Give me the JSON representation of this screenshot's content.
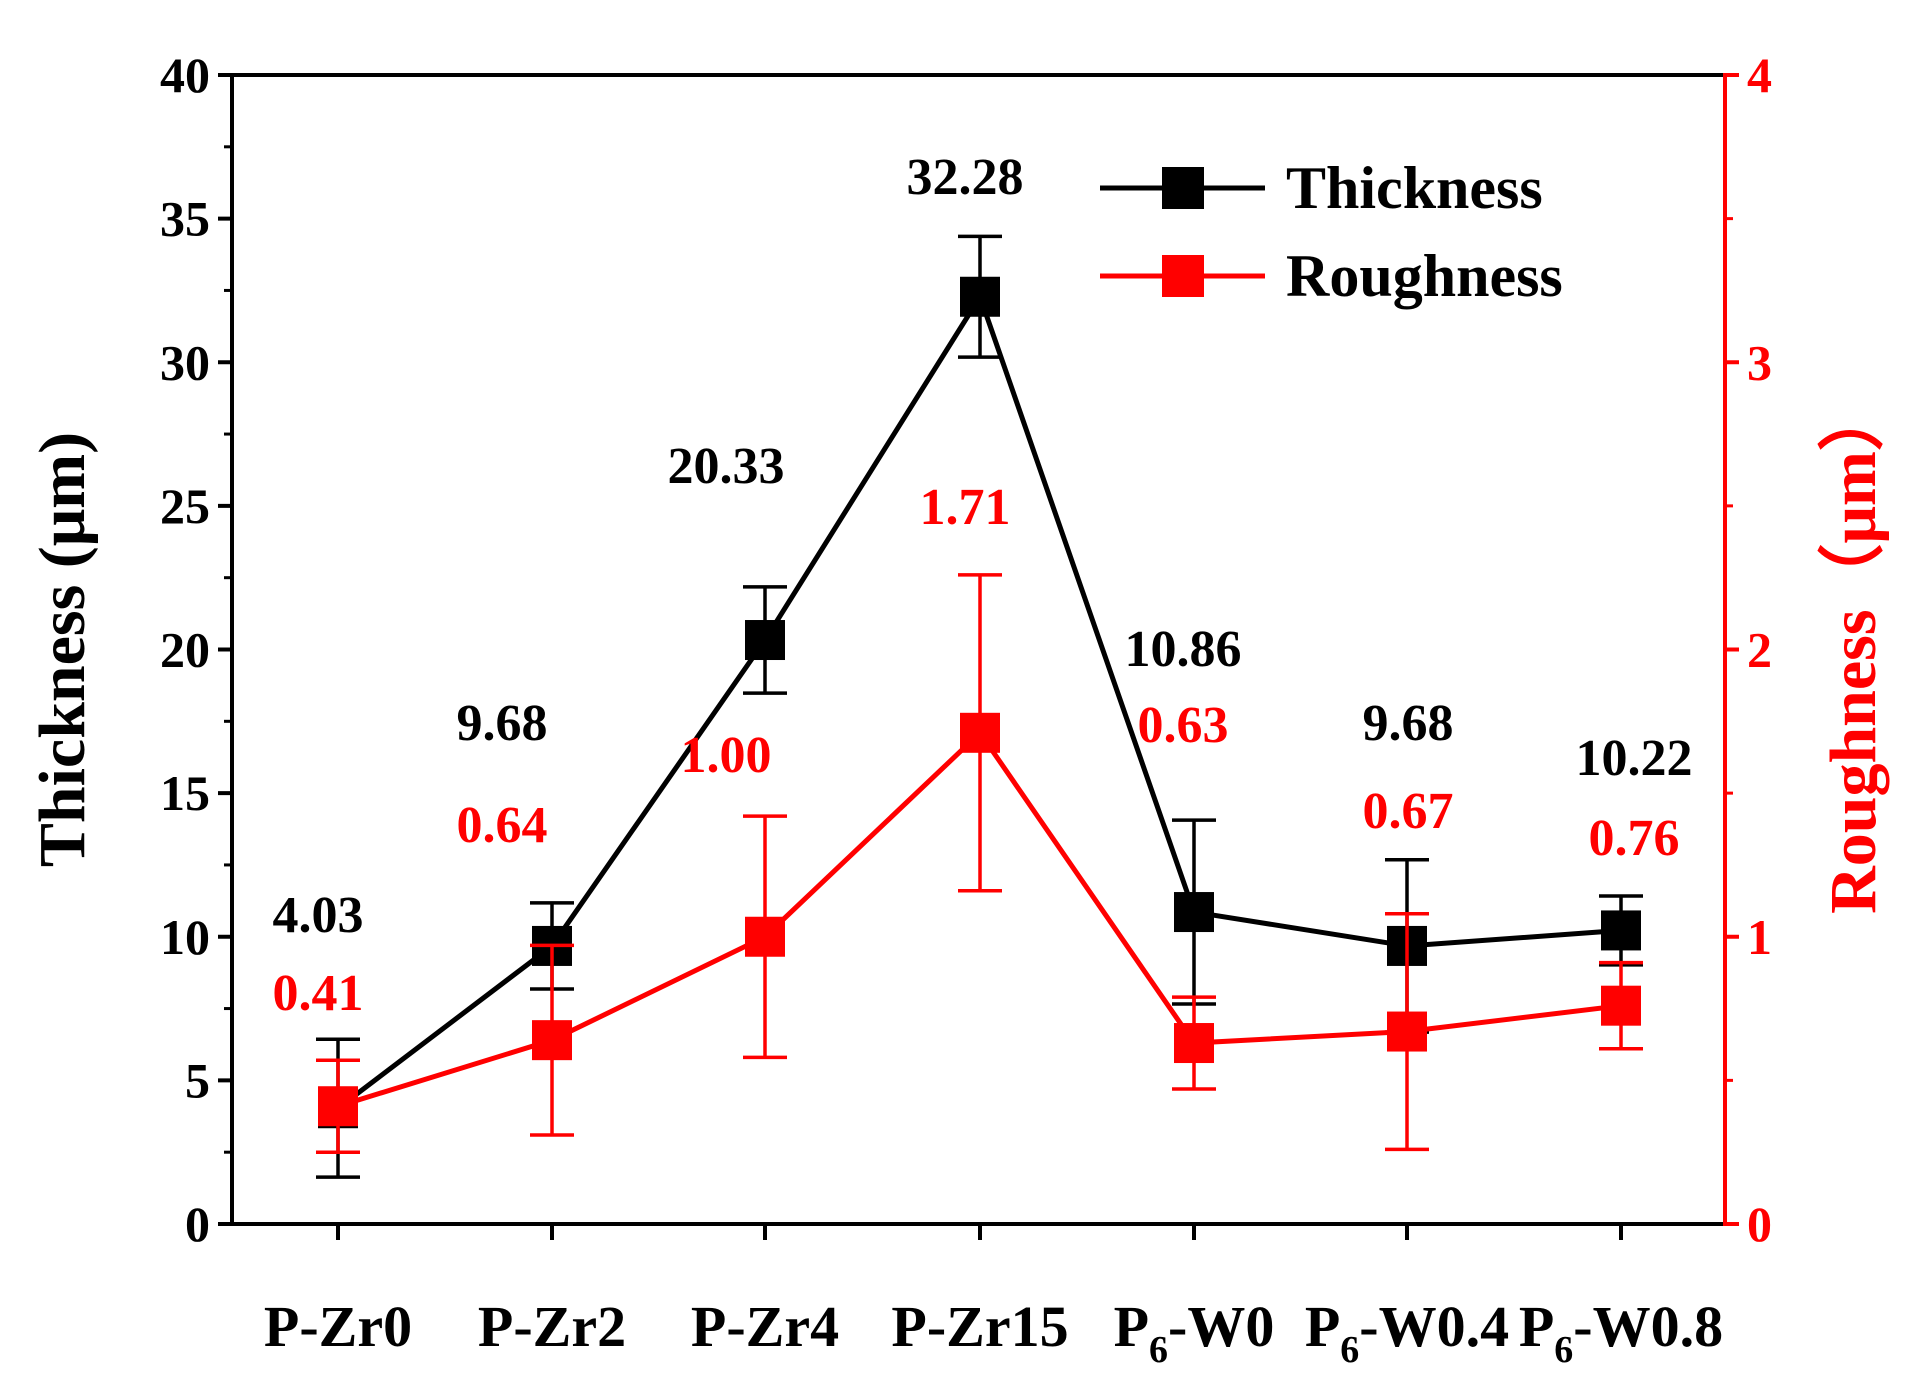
{
  "chart_data": {
    "type": "line",
    "categories": [
      {
        "main": "P-Zr0",
        "sub": "",
        "suffix": ""
      },
      {
        "main": "P-Zr2",
        "sub": "",
        "suffix": ""
      },
      {
        "main": "P-Zr4",
        "sub": "",
        "suffix": ""
      },
      {
        "main": "P-Zr15",
        "sub": "",
        "suffix": ""
      },
      {
        "main": "P",
        "sub": "6",
        "suffix": "-W0"
      },
      {
        "main": "P",
        "sub": "6",
        "suffix": "-W0.4"
      },
      {
        "main": "P",
        "sub": "6",
        "suffix": "-W0.8"
      }
    ],
    "series": [
      {
        "name": "Thickness",
        "axis": "left",
        "color": "#000000",
        "values": [
          4.03,
          9.68,
          20.33,
          32.28,
          10.86,
          9.68,
          10.22
        ],
        "error": [
          2.4,
          1.5,
          1.85,
          2.1,
          3.2,
          3.0,
          1.2
        ],
        "labels": [
          "4.03",
          "9.68",
          "20.33",
          "32.28",
          "10.86",
          "9.68",
          "10.22"
        ]
      },
      {
        "name": "Roughness",
        "axis": "right",
        "color": "#ff0000",
        "values": [
          0.41,
          0.64,
          1.0,
          1.71,
          0.63,
          0.67,
          0.76
        ],
        "error": [
          0.16,
          0.33,
          0.42,
          0.55,
          0.16,
          0.41,
          0.15
        ],
        "labels": [
          "0.41",
          "0.64",
          "1.00",
          "1.71",
          "0.63",
          "0.67",
          "0.76"
        ]
      }
    ],
    "ylabel_left": "Thickness (μm)",
    "ylabel_right": "Roughness（μm）",
    "ylim_left": [
      0,
      40
    ],
    "ylim_right": [
      0,
      4
    ],
    "yticks_left": [
      "0",
      "5",
      "10",
      "15",
      "20",
      "25",
      "30",
      "35",
      "40"
    ],
    "yticks_right": [
      "0",
      "1",
      "2",
      "3",
      "4"
    ],
    "legend_position": "top-right",
    "grid": false
  }
}
